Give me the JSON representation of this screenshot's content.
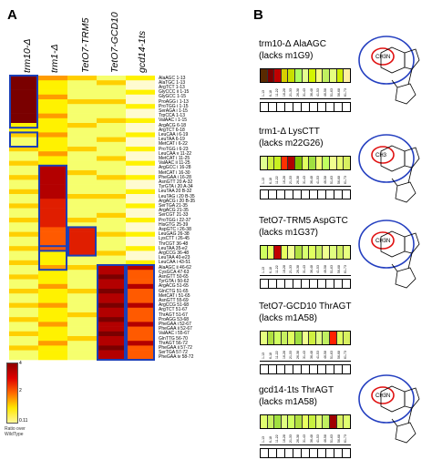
{
  "panel_a": {
    "letter": "A",
    "columns": [
      "trm10-Δ",
      "trm1-Δ",
      "TetO7-TRM5",
      "TetO7-GCD10",
      "gcd14-1ts"
    ],
    "rows": [
      "AlaAGC 1-13",
      "AlaTGC 1-13",
      "ArgTCT 1-13",
      "GlyCCC ii 1-15",
      "GlyGCC 1-15",
      "ProAGG i 1-13",
      "ProTGG i 1-15",
      "SerAGA i 1-15",
      "TrpCCA 1-13",
      "ValAAC i 1-15",
      "ArgACG 6-18",
      "ArgTCT 6-18",
      "LeuCAA i 6-19",
      "LeuTAA 6-19",
      "MetCAT i 6-22",
      "ProTGG i 6-23",
      "LeuCAA v 11-22",
      "MetCAT i 11-25",
      "ValAAC ii 11-25",
      "ArgGCC i 16-28",
      "MetCAT i 16-30",
      "PheGAA i 16-28",
      "AsnGTT 20 A-32",
      "TyrGTA i 20 A-34",
      "LeuTAA 20 B-32",
      "LeuTAG i 20 B-35",
      "ArgACG i 20 B-35",
      "SerTGA 21-35",
      "ArgACG 21-35",
      "SerCGT 21-33",
      "ProTGG i 22-37",
      "HisGTG 25-39",
      "AspGTC i 26-38",
      "LeuGAG 26-38",
      "LysCTT i 26-45",
      "ThrCGT 36-48",
      "LeuTAA 35-e2",
      "ArgCCG 36-48",
      "LeuTAA 40-e23",
      "LeuCAA i 43-51",
      "AlaAGC ii 46-62",
      "CysGCA 47-63",
      "AsnGTT 50-65",
      "TyrGTA i 50-62",
      "ArgACG 51-65",
      "GlnCTG 51-65",
      "MetCAT i 51-65",
      "AsnGTT 55-69",
      "ArgCCG 51-68",
      "ArgTCT 51-67",
      "ThrAGT 51-67",
      "ProAGG 53-68",
      "PheGAA i 52-67",
      "PheGAA ii 52-67",
      "ValAAC i 55-67",
      "GlnTTG 56-70",
      "ThrAGT 56-72",
      "PheGAA ii 57-72",
      "SerTGA 57-72",
      "PheGAA iv 58-72"
    ],
    "heat_rows": [
      "111111111111",
      "111111111111",
      "111111111111",
      "111111111111",
      "111111111111",
      "111111111111",
      "111111111111",
      "111111111111",
      "111111111111",
      "111111111111",
      "222111222222",
      "333322333333",
      "444433444444",
      "444444444444",
      "444445444445",
      "444444444444",
      "555544555555",
      "555555555555",
      "555555555555",
      "555544555555",
      "666666666666",
      "777777777777",
      "777777777777",
      "888888888888",
      "888888888888",
      "999999999999",
      "999999999999",
      "999999999999",
      "999999999999",
      "999999999999",
      "999999999999",
      "999999999999",
      "999999999999",
      "999999999999",
      "999999999999",
      "999999999999",
      "999999999999",
      "999999999999",
      "999999999999",
      "999999999999",
      "999999999999",
      "999999999999",
      "999999999999",
      "999999999999",
      "999999999999",
      "999999999999",
      "999999999999",
      "999999999999",
      "999999999999",
      "999999999999",
      "999999999999",
      "999999999999",
      "999999999999",
      "999999999999",
      "999999999999",
      "999999999999",
      "999999999999",
      "999999999999",
      "999999999999",
      "999999999999"
    ],
    "legend": {
      "max_label": "4",
      "mid_label": "2",
      "min_label": "0.11",
      "caption_line1": "Ratio over",
      "caption_line2": "WildType"
    }
  },
  "panel_b": {
    "letter": "B",
    "items": [
      {
        "title_line1": "trm10-Δ AlaAGC",
        "title_line2": "(lacks m1G9)"
      },
      {
        "title_line1": "trm1-Δ LysCTT",
        "title_line2": "(lacks m22G26)"
      },
      {
        "title_line1": "TetO7-TRM5 AspGTC",
        "title_line2": "(lacks m1G37)"
      },
      {
        "title_line1": "TetO7-GCD10 ThrAGT",
        "title_line2": "(lacks m1A58)"
      },
      {
        "title_line1": "gcd14-1ts ThrAGT",
        "title_line2": "(lacks m1A58)"
      }
    ],
    "nucleoside_labels": [
      "CH3N",
      "CH3",
      "CH3N",
      "CH3N"
    ],
    "tick_labels": [
      "1-13",
      "6-18",
      "11-22",
      "16-28",
      "21-33",
      "26-38",
      "31-43",
      "36-48",
      "41-53",
      "46-58",
      "51-63",
      "56-68",
      "61-73"
    ]
  }
}
